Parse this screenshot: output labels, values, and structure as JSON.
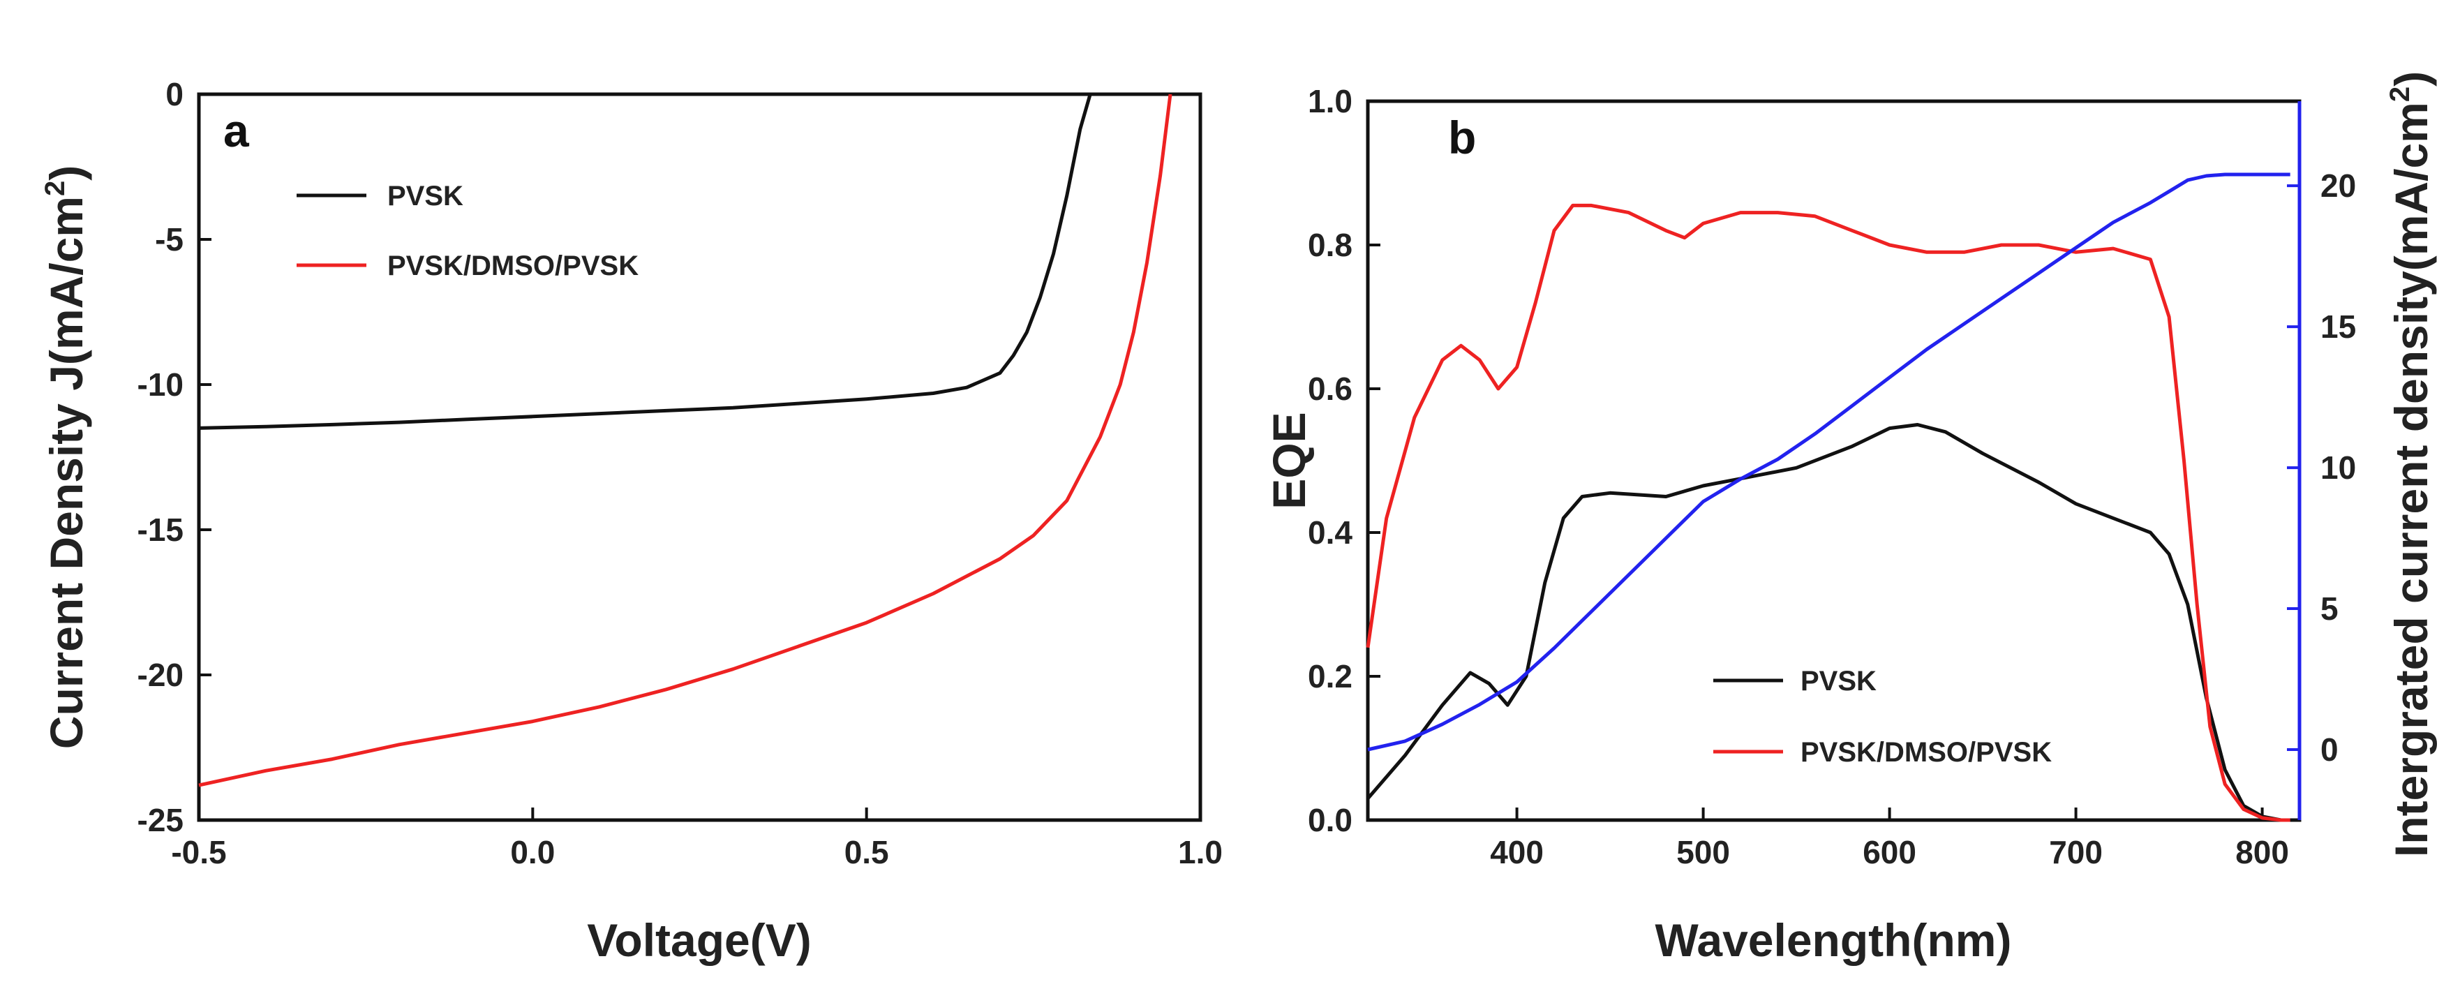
{
  "colors": {
    "pvsk": "#111111",
    "dmso": "#ee2222",
    "integrated": "#2222ee",
    "axis": "#111111"
  },
  "chart_data": [
    {
      "panel_label": "a",
      "type": "line",
      "xlabel": "Voltage(V)",
      "ylabel": "Current Density J(mA/cm",
      "ylabel_sup": "2",
      "ylabel_end": ")",
      "xlim": [
        -0.5,
        1.0
      ],
      "ylim": [
        -25,
        0
      ],
      "xticks": [
        -0.5,
        0.0,
        0.5,
        1.0
      ],
      "xtick_labels": [
        "-0.5",
        "0.0",
        "0.5",
        "1.0"
      ],
      "yticks": [
        0,
        -5,
        -10,
        -15,
        -20,
        -25
      ],
      "ytick_labels": [
        "0",
        "-5",
        "-10",
        "-15",
        "-20",
        "-25"
      ],
      "legend": [
        "PVSK",
        "PVSK/DMSO/PVSK"
      ],
      "series": [
        {
          "name": "PVSK",
          "color_key": "pvsk",
          "x": [
            -0.5,
            -0.4,
            -0.3,
            -0.2,
            -0.1,
            0.0,
            0.1,
            0.2,
            0.3,
            0.4,
            0.5,
            0.6,
            0.65,
            0.7,
            0.72,
            0.74,
            0.76,
            0.78,
            0.8,
            0.82,
            0.835
          ],
          "y": [
            -11.5,
            -11.45,
            -11.38,
            -11.3,
            -11.2,
            -11.1,
            -11.0,
            -10.9,
            -10.8,
            -10.65,
            -10.5,
            -10.3,
            -10.1,
            -9.6,
            -9.0,
            -8.2,
            -7.0,
            -5.5,
            -3.5,
            -1.2,
            0
          ]
        },
        {
          "name": "PVSK/DMSO/PVSK",
          "color_key": "dmso",
          "x": [
            -0.5,
            -0.4,
            -0.3,
            -0.2,
            -0.1,
            0.0,
            0.1,
            0.2,
            0.3,
            0.4,
            0.5,
            0.6,
            0.7,
            0.75,
            0.8,
            0.85,
            0.88,
            0.9,
            0.92,
            0.94,
            0.955
          ],
          "y": [
            -23.8,
            -23.3,
            -22.9,
            -22.4,
            -22.0,
            -21.6,
            -21.1,
            -20.5,
            -19.8,
            -19.0,
            -18.2,
            -17.2,
            -16.0,
            -15.2,
            -14.0,
            -11.8,
            -10.0,
            -8.2,
            -5.8,
            -2.8,
            0
          ]
        }
      ]
    },
    {
      "panel_label": "b",
      "type": "line",
      "xlabel": "Wavelength(nm)",
      "ylabel": "EQE",
      "y2label": "Intergrated current density(mA/cm",
      "y2label_sup": "2",
      "y2label_end": ")",
      "xlim": [
        320,
        820
      ],
      "ylim": [
        0.0,
        1.0
      ],
      "y2lim": [
        -2.5,
        23.0
      ],
      "xticks": [
        400,
        500,
        600,
        700,
        800
      ],
      "xtick_labels": [
        "400",
        "500",
        "600",
        "700",
        "800"
      ],
      "yticks": [
        0.0,
        0.2,
        0.4,
        0.6,
        0.8,
        1.0
      ],
      "ytick_labels": [
        "0.0",
        "0.2",
        "0.4",
        "0.6",
        "0.8",
        "1.0"
      ],
      "y2ticks": [
        0,
        5,
        10,
        15,
        20
      ],
      "y2tick_labels": [
        "0",
        "5",
        "10",
        "15",
        "20"
      ],
      "legend": [
        "PVSK",
        "PVSK/DMSO/PVSK"
      ],
      "series": [
        {
          "name": "PVSK",
          "axis": "left",
          "color_key": "pvsk",
          "x": [
            320,
            340,
            360,
            375,
            385,
            395,
            405,
            415,
            425,
            435,
            450,
            480,
            500,
            520,
            550,
            580,
            600,
            615,
            630,
            650,
            680,
            700,
            720,
            740,
            750,
            760,
            770,
            780,
            790,
            800,
            810,
            815
          ],
          "y": [
            0.03,
            0.09,
            0.16,
            0.205,
            0.19,
            0.16,
            0.2,
            0.33,
            0.42,
            0.45,
            0.455,
            0.45,
            0.465,
            0.475,
            0.49,
            0.52,
            0.545,
            0.55,
            0.54,
            0.51,
            0.47,
            0.44,
            0.42,
            0.4,
            0.37,
            0.3,
            0.17,
            0.07,
            0.02,
            0.005,
            0.0,
            0.0
          ]
        },
        {
          "name": "PVSK/DMSO/PVSK",
          "axis": "left",
          "color_key": "dmso",
          "x": [
            320,
            330,
            345,
            360,
            370,
            380,
            390,
            400,
            410,
            420,
            430,
            440,
            460,
            480,
            490,
            500,
            520,
            540,
            560,
            580,
            600,
            620,
            640,
            660,
            680,
            700,
            720,
            740,
            750,
            758,
            765,
            772,
            780,
            790,
            800,
            810,
            815
          ],
          "y": [
            0.24,
            0.42,
            0.56,
            0.64,
            0.66,
            0.64,
            0.6,
            0.63,
            0.72,
            0.82,
            0.855,
            0.855,
            0.845,
            0.82,
            0.81,
            0.83,
            0.845,
            0.845,
            0.84,
            0.82,
            0.8,
            0.79,
            0.79,
            0.8,
            0.8,
            0.79,
            0.795,
            0.78,
            0.7,
            0.5,
            0.3,
            0.13,
            0.05,
            0.015,
            0.003,
            0.0,
            0.0
          ]
        },
        {
          "name": "Integrated current density",
          "axis": "right",
          "color_key": "integrated",
          "x": [
            320,
            340,
            360,
            380,
            400,
            420,
            440,
            460,
            480,
            500,
            520,
            540,
            560,
            580,
            600,
            620,
            640,
            660,
            680,
            700,
            720,
            740,
            750,
            760,
            770,
            780,
            790,
            800,
            810,
            815
          ],
          "y": [
            0.0,
            0.3,
            0.9,
            1.6,
            2.4,
            3.6,
            4.9,
            6.2,
            7.5,
            8.8,
            9.6,
            10.3,
            11.2,
            12.2,
            13.2,
            14.2,
            15.1,
            16.0,
            16.9,
            17.8,
            18.7,
            19.4,
            19.8,
            20.2,
            20.35,
            20.4,
            20.4,
            20.4,
            20.4,
            20.4
          ]
        }
      ]
    }
  ]
}
